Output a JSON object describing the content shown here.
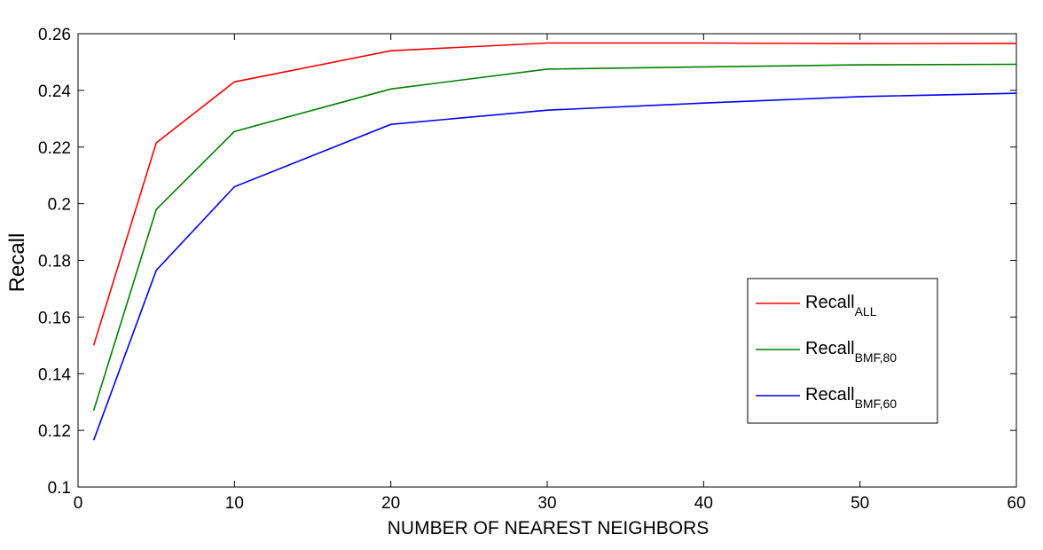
{
  "chart_data": {
    "type": "line",
    "title": "",
    "xlabel": "NUMBER OF NEAREST NEIGHBORS",
    "ylabel": "Recall",
    "xlim": [
      0,
      60
    ],
    "ylim": [
      0.1,
      0.26
    ],
    "xticks": [
      0,
      10,
      20,
      30,
      40,
      50,
      60
    ],
    "xtick_labels": [
      "0",
      "10",
      "20",
      "30",
      "40",
      "50",
      "60"
    ],
    "yticks": [
      0.1,
      0.12,
      0.14,
      0.16,
      0.18,
      0.2,
      0.22,
      0.24,
      0.26
    ],
    "ytick_labels": [
      "0.1",
      "0.12",
      "0.14",
      "0.16",
      "0.18",
      "0.2",
      "0.22",
      "0.24",
      "0.26"
    ],
    "grid": false,
    "legend_position": "right",
    "x": [
      1,
      5,
      10,
      20,
      30,
      40,
      50,
      60
    ],
    "series": [
      {
        "name": "Recall",
        "subscript": "ALL",
        "color": "#ff0000",
        "values": [
          0.15,
          0.2215,
          0.243,
          0.254,
          0.2567,
          0.2567,
          0.2565,
          0.2566
        ]
      },
      {
        "name": "Recall",
        "subscript": "BMF,80",
        "color": "#008000",
        "values": [
          0.127,
          0.198,
          0.2255,
          0.2405,
          0.2475,
          0.2483,
          0.249,
          0.2492
        ]
      },
      {
        "name": "Recall",
        "subscript": "BMF,60",
        "color": "#0000ff",
        "values": [
          0.1165,
          0.1765,
          0.206,
          0.228,
          0.233,
          0.2355,
          0.2378,
          0.239
        ]
      }
    ]
  }
}
